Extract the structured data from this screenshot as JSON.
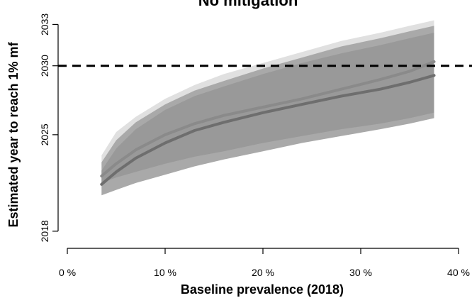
{
  "chart_data": {
    "type": "area",
    "title": "No mitigation",
    "xlabel": "Baseline prevalence (2018)",
    "ylabel": "Estimated year to reach 1% mf",
    "xlim": [
      0,
      40
    ],
    "ylim": [
      2016.5,
      2034
    ],
    "x_ticks": [
      0,
      10,
      20,
      30,
      40
    ],
    "x_tick_labels": [
      "0 %",
      "10 %",
      "20 %",
      "30 %",
      "40 %"
    ],
    "y_ticks": [
      2018,
      2025,
      2030,
      2033
    ],
    "y_tick_labels": [
      "2018",
      "2025",
      "2030",
      "2033"
    ],
    "reference_line": {
      "y": 2030,
      "style": "dashed",
      "color": "#000000"
    },
    "x": [
      3.5,
      5,
      7,
      10,
      13,
      16,
      20,
      24,
      28,
      32,
      35,
      37.5
    ],
    "series": [
      {
        "kind": "band",
        "lower": [
          2022.8,
          2023.4,
          2024.1,
          2024.9,
          2025.5,
          2026.0,
          2026.6,
          2027.1,
          2027.6,
          2028.0,
          2028.3,
          2028.6
        ],
        "upper": [
          2023.5,
          2025.2,
          2026.3,
          2027.6,
          2028.6,
          2029.4,
          2030.2,
          2031.0,
          2031.8,
          2032.4,
          2032.9,
          2033.3
        ],
        "color": "#e0e0e0"
      },
      {
        "kind": "band",
        "lower": [
          2020.6,
          2021.0,
          2021.5,
          2022.1,
          2022.7,
          2023.2,
          2023.8,
          2024.4,
          2024.9,
          2025.4,
          2025.8,
          2026.2
        ],
        "upper": [
          2023.0,
          2024.6,
          2025.9,
          2027.2,
          2028.2,
          2028.9,
          2029.8,
          2030.6,
          2031.4,
          2032.0,
          2032.5,
          2032.9
        ],
        "color": "#a9a9a9"
      },
      {
        "kind": "band",
        "lower": [
          2021.5,
          2021.9,
          2022.3,
          2022.9,
          2023.4,
          2023.8,
          2024.4,
          2024.9,
          2025.4,
          2025.8,
          2026.2,
          2026.6
        ],
        "upper": [
          2022.4,
          2024.0,
          2025.4,
          2026.8,
          2027.8,
          2028.5,
          2029.4,
          2030.2,
          2030.9,
          2031.5,
          2032.0,
          2032.4
        ],
        "color": "#999999"
      },
      {
        "kind": "line",
        "values": [
          2022.0,
          2022.9,
          2023.9,
          2025.0,
          2025.8,
          2026.4,
          2027.0,
          2027.6,
          2028.3,
          2029.0,
          2029.6,
          2030.3
        ],
        "color": "#8a8a8a"
      },
      {
        "kind": "line",
        "values": [
          2021.4,
          2022.3,
          2023.3,
          2024.4,
          2025.3,
          2025.9,
          2026.6,
          2027.2,
          2027.8,
          2028.3,
          2028.8,
          2029.3
        ],
        "color": "#6e6e6e"
      }
    ]
  }
}
